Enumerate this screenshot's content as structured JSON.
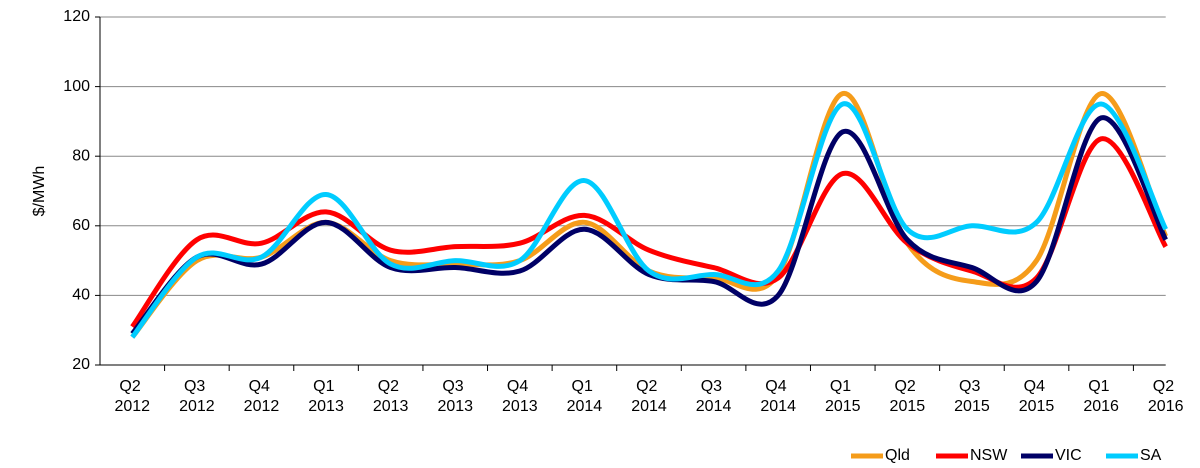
{
  "chart_data": {
    "type": "line",
    "y_label": "$/MWh",
    "categories": [
      "Q2 2012",
      "Q3 2012",
      "Q4 2012",
      "Q1 2013",
      "Q2 2013",
      "Q3 2013",
      "Q4 2013",
      "Q1 2014",
      "Q2 2014",
      "Q3 2014",
      "Q4 2014",
      "Q1 2015",
      "Q2 2015",
      "Q3 2015",
      "Q4 2015",
      "Q1 2016",
      "Q2 2016"
    ],
    "series": [
      {
        "name": "Qld",
        "color": "#f59c1a",
        "values": [
          28,
          50,
          51,
          61,
          50,
          49,
          50,
          61,
          47,
          45,
          46,
          98,
          55,
          44,
          50,
          98,
          57
        ]
      },
      {
        "name": "NSW",
        "color": "#ff0000",
        "values": [
          31,
          56,
          55,
          64,
          53,
          54,
          55,
          63,
          53,
          48,
          45,
          75,
          55,
          47,
          45,
          85,
          54
        ]
      },
      {
        "name": "VIC",
        "color": "#000066",
        "values": [
          29,
          51,
          49,
          61,
          48,
          48,
          47,
          59,
          46,
          44,
          40,
          87,
          56,
          48,
          44,
          91,
          56
        ]
      },
      {
        "name": "SA",
        "color": "#00ccff",
        "values": [
          28,
          51,
          51,
          69,
          49,
          50,
          50,
          73,
          47,
          46,
          47,
          95,
          59,
          60,
          61,
          95,
          59
        ]
      }
    ],
    "ylim": [
      20,
      120
    ],
    "yticks": [
      20,
      40,
      60,
      80,
      100,
      120
    ],
    "grid": true,
    "legend": "bottom-right"
  }
}
